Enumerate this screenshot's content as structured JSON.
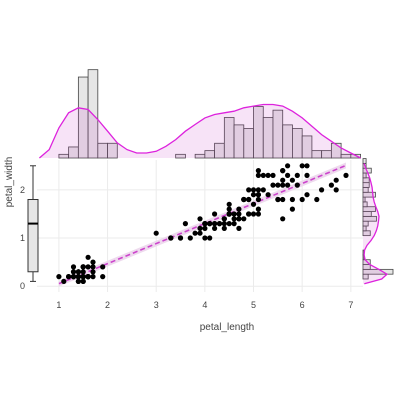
{
  "chart_data": {
    "type": "scatter",
    "title": "",
    "xlabel": "petal_length",
    "ylabel": "petal_width",
    "xlim": [
      0.55,
      7.25
    ],
    "ylim": [
      -0.12,
      2.62
    ],
    "xticks": [
      1,
      2,
      3,
      4,
      5,
      6,
      7
    ],
    "yticks": [
      0,
      1,
      2
    ],
    "grid": true,
    "colors": {
      "points": "#000000",
      "regression": "#cc44cc",
      "ci_band": "#ecd6ec",
      "density": "#dd22dd",
      "hist_fill": "#e6e6e6",
      "hist_stroke": "#444444",
      "grid": "#ebebeb"
    },
    "points": [
      [
        1.4,
        0.2
      ],
      [
        1.4,
        0.2
      ],
      [
        1.3,
        0.2
      ],
      [
        1.5,
        0.2
      ],
      [
        1.4,
        0.2
      ],
      [
        1.7,
        0.4
      ],
      [
        1.4,
        0.3
      ],
      [
        1.5,
        0.2
      ],
      [
        1.4,
        0.2
      ],
      [
        1.5,
        0.1
      ],
      [
        1.5,
        0.2
      ],
      [
        1.6,
        0.2
      ],
      [
        1.4,
        0.1
      ],
      [
        1.1,
        0.1
      ],
      [
        1.2,
        0.2
      ],
      [
        1.5,
        0.4
      ],
      [
        1.3,
        0.4
      ],
      [
        1.4,
        0.3
      ],
      [
        1.7,
        0.3
      ],
      [
        1.5,
        0.3
      ],
      [
        1.7,
        0.2
      ],
      [
        1.5,
        0.4
      ],
      [
        1.0,
        0.2
      ],
      [
        1.7,
        0.5
      ],
      [
        1.9,
        0.2
      ],
      [
        1.6,
        0.2
      ],
      [
        1.6,
        0.4
      ],
      [
        1.5,
        0.2
      ],
      [
        1.4,
        0.2
      ],
      [
        1.6,
        0.2
      ],
      [
        1.6,
        0.2
      ],
      [
        1.5,
        0.4
      ],
      [
        1.5,
        0.1
      ],
      [
        1.4,
        0.2
      ],
      [
        1.5,
        0.2
      ],
      [
        1.2,
        0.2
      ],
      [
        1.3,
        0.2
      ],
      [
        1.4,
        0.1
      ],
      [
        1.3,
        0.2
      ],
      [
        1.5,
        0.2
      ],
      [
        1.3,
        0.3
      ],
      [
        1.3,
        0.3
      ],
      [
        1.3,
        0.2
      ],
      [
        1.6,
        0.6
      ],
      [
        1.9,
        0.4
      ],
      [
        1.4,
        0.3
      ],
      [
        1.6,
        0.2
      ],
      [
        1.4,
        0.2
      ],
      [
        1.5,
        0.2
      ],
      [
        1.4,
        0.2
      ],
      [
        4.7,
        1.4
      ],
      [
        4.5,
        1.5
      ],
      [
        4.9,
        1.5
      ],
      [
        4.0,
        1.3
      ],
      [
        4.6,
        1.5
      ],
      [
        4.5,
        1.3
      ],
      [
        4.7,
        1.6
      ],
      [
        3.3,
        1.0
      ],
      [
        4.6,
        1.3
      ],
      [
        3.9,
        1.4
      ],
      [
        3.5,
        1.0
      ],
      [
        4.2,
        1.5
      ],
      [
        4.0,
        1.0
      ],
      [
        4.7,
        1.4
      ],
      [
        3.6,
        1.3
      ],
      [
        4.4,
        1.4
      ],
      [
        4.5,
        1.5
      ],
      [
        4.1,
        1.0
      ],
      [
        4.5,
        1.5
      ],
      [
        3.9,
        1.1
      ],
      [
        4.8,
        1.8
      ],
      [
        4.0,
        1.3
      ],
      [
        4.9,
        1.5
      ],
      [
        4.7,
        1.2
      ],
      [
        4.3,
        1.3
      ],
      [
        4.4,
        1.4
      ],
      [
        4.8,
        1.4
      ],
      [
        5.0,
        1.7
      ],
      [
        4.5,
        1.5
      ],
      [
        3.5,
        1.0
      ],
      [
        3.8,
        1.1
      ],
      [
        3.7,
        1.0
      ],
      [
        3.9,
        1.2
      ],
      [
        5.1,
        1.6
      ],
      [
        4.5,
        1.5
      ],
      [
        4.5,
        1.6
      ],
      [
        4.7,
        1.5
      ],
      [
        4.4,
        1.3
      ],
      [
        4.1,
        1.3
      ],
      [
        4.0,
        1.3
      ],
      [
        4.4,
        1.2
      ],
      [
        4.6,
        1.4
      ],
      [
        4.0,
        1.2
      ],
      [
        3.3,
        1.0
      ],
      [
        4.2,
        1.3
      ],
      [
        4.2,
        1.2
      ],
      [
        4.2,
        1.3
      ],
      [
        4.3,
        1.3
      ],
      [
        3.0,
        1.1
      ],
      [
        4.1,
        1.3
      ],
      [
        6.0,
        2.5
      ],
      [
        5.1,
        1.9
      ],
      [
        5.9,
        2.1
      ],
      [
        5.6,
        1.8
      ],
      [
        5.8,
        2.2
      ],
      [
        6.6,
        2.1
      ],
      [
        4.5,
        1.7
      ],
      [
        6.3,
        1.8
      ],
      [
        5.8,
        1.8
      ],
      [
        6.1,
        2.5
      ],
      [
        5.1,
        2.0
      ],
      [
        5.3,
        1.9
      ],
      [
        5.5,
        2.1
      ],
      [
        5.0,
        2.0
      ],
      [
        5.1,
        2.4
      ],
      [
        5.3,
        2.3
      ],
      [
        5.5,
        1.8
      ],
      [
        6.7,
        2.2
      ],
      [
        6.9,
        2.3
      ],
      [
        5.0,
        1.5
      ],
      [
        5.7,
        2.3
      ],
      [
        4.9,
        2.0
      ],
      [
        6.7,
        2.0
      ],
      [
        4.9,
        1.8
      ],
      [
        5.7,
        2.1
      ],
      [
        6.0,
        1.8
      ],
      [
        4.8,
        1.8
      ],
      [
        4.9,
        1.8
      ],
      [
        5.6,
        2.1
      ],
      [
        5.8,
        1.6
      ],
      [
        6.1,
        1.9
      ],
      [
        6.4,
        2.0
      ],
      [
        5.6,
        2.2
      ],
      [
        5.1,
        1.5
      ],
      [
        5.6,
        1.4
      ],
      [
        6.1,
        2.3
      ],
      [
        5.6,
        2.4
      ],
      [
        5.5,
        1.8
      ],
      [
        4.8,
        1.8
      ],
      [
        5.4,
        2.1
      ],
      [
        5.6,
        2.4
      ],
      [
        5.1,
        2.3
      ],
      [
        5.1,
        1.9
      ],
      [
        5.9,
        2.3
      ],
      [
        5.7,
        2.5
      ],
      [
        5.2,
        2.3
      ],
      [
        5.0,
        1.9
      ],
      [
        5.2,
        2.0
      ],
      [
        5.4,
        2.3
      ],
      [
        5.1,
        1.8
      ]
    ],
    "regression": {
      "intercept": -0.363,
      "slope": 0.416,
      "x_range": [
        1.0,
        6.9
      ]
    },
    "top_hist": {
      "bin_start": 0.8,
      "bin_width": 0.2,
      "y_max": 25,
      "counts": [
        0,
        1,
        3,
        22,
        24,
        4,
        4,
        0,
        0,
        0,
        0,
        0,
        0,
        1,
        0,
        1,
        2,
        4,
        11,
        9,
        8,
        14,
        11,
        13,
        9,
        8,
        6,
        2,
        2,
        4,
        1,
        1
      ],
      "density": [
        0.0,
        0.05,
        0.18,
        0.27,
        0.3,
        0.29,
        0.23,
        0.16,
        0.09,
        0.05,
        0.03,
        0.03,
        0.04,
        0.07,
        0.11,
        0.16,
        0.2,
        0.24,
        0.26,
        0.27,
        0.28,
        0.3,
        0.31,
        0.32,
        0.32,
        0.31,
        0.28,
        0.24,
        0.19,
        0.14,
        0.1,
        0.06,
        0.03,
        0.0
      ],
      "density_x_start": 0.6,
      "density_step": 0.2,
      "density_max": 0.55
    },
    "right_hist": {
      "bin_start": 0.05,
      "bin_width": 0.1,
      "counts": [
        0,
        5,
        29,
        7,
        7,
        1,
        1,
        0,
        0,
        0,
        7,
        3,
        5,
        13,
        8,
        12,
        4,
        2,
        12,
        5,
        6,
        6,
        3,
        8,
        3,
        3
      ],
      "x_max": 29,
      "density": [
        0.05,
        0.7,
        0.9,
        0.6,
        0.25,
        0.08,
        0.04,
        0.06,
        0.15,
        0.3,
        0.42,
        0.5,
        0.55,
        0.58,
        0.6,
        0.55,
        0.48,
        0.42,
        0.38,
        0.36,
        0.34,
        0.3,
        0.25,
        0.18,
        0.1,
        0.04
      ],
      "density_y_start": 0.05,
      "density_step": 0.1,
      "density_max": 0.9
    },
    "boxplot": {
      "min": 0.1,
      "q1": 0.3,
      "median": 1.3,
      "q3": 1.8,
      "max": 2.5
    }
  }
}
